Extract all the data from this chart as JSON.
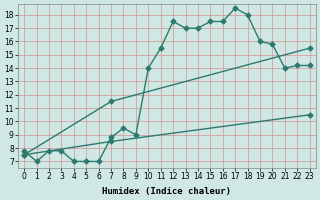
{
  "xlabel": "Humidex (Indice chaleur)",
  "ylabel": "",
  "bg_color": "#cfe8e4",
  "grid_color": "#b8d8d4",
  "line_color": "#2d7a6e",
  "xlim": [
    -0.5,
    23.5
  ],
  "ylim": [
    6.5,
    18.8
  ],
  "xticks": [
    0,
    1,
    2,
    3,
    4,
    5,
    6,
    7,
    8,
    9,
    10,
    11,
    12,
    13,
    14,
    15,
    16,
    17,
    18,
    19,
    20,
    21,
    22,
    23
  ],
  "yticks": [
    7,
    8,
    9,
    10,
    11,
    12,
    13,
    14,
    15,
    16,
    17,
    18
  ],
  "line1_x": [
    0,
    1,
    2,
    3,
    4,
    5,
    6,
    7,
    8,
    9,
    10,
    11,
    12,
    13,
    14,
    15,
    16,
    17,
    18,
    19,
    20,
    21,
    22,
    23
  ],
  "line1_y": [
    7.8,
    7.0,
    7.8,
    7.8,
    7.0,
    7.0,
    7.0,
    8.8,
    9.5,
    9.0,
    14.0,
    15.5,
    17.5,
    17.0,
    17.0,
    17.5,
    17.5,
    18.5,
    18.0,
    16.0,
    15.8,
    14.0,
    14.2,
    14.2
  ],
  "line2_x": [
    0,
    7,
    23
  ],
  "line2_y": [
    7.5,
    11.5,
    15.5
  ],
  "line3_x": [
    0,
    7,
    23
  ],
  "line3_y": [
    7.5,
    8.5,
    10.5
  ],
  "marker": "D",
  "markersize": 2.5,
  "linewidth": 1.0
}
